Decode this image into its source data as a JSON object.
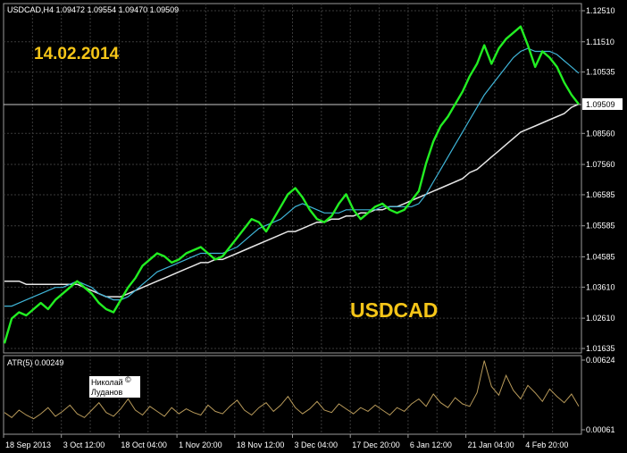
{
  "header": {
    "symbol_line": "USDCAD,H4  1.09472 1.09554 1.09470 1.09509"
  },
  "annotations": {
    "date": "14.02.2014",
    "symbol": "USDCAD",
    "author_line1": "Николай",
    "author_line2": "Луданов",
    "copyright_mark": "©"
  },
  "colors": {
    "background": "#000000",
    "grid": "#3a3a3a",
    "price": "#22ee22",
    "fast_ma": "#3fb5d8",
    "slow_ma": "#e6e6e6",
    "atr": "#b89a5a",
    "text": "#ffffff",
    "highlight_text": "#f5c518"
  },
  "chart_data": [
    {
      "type": "line",
      "panel": "price",
      "ylim": [
        1.01635,
        1.1251
      ],
      "y_ticks": [
        "1.12510",
        "1.11510",
        "1.10535",
        "1.09509",
        "1.08560",
        "1.07560",
        "1.06585",
        "1.05585",
        "1.04585",
        "1.03610",
        "1.02610",
        "1.01635"
      ],
      "current_price": "1.09509",
      "x_ticks": [
        "18 Sep 2013",
        "3 Oct 12:00",
        "18 Oct 04:00",
        "1 Nov 20:00",
        "18 Nov 12:00",
        "3 Dec 04:00",
        "17 Dec 20:00",
        "6 Jan 12:00",
        "21 Jan 04:00",
        "4 Feb 20:00"
      ],
      "series": [
        {
          "role": "price",
          "values": [
            1.018,
            1.026,
            1.028,
            1.027,
            1.029,
            1.031,
            1.029,
            1.032,
            1.034,
            1.036,
            1.038,
            1.036,
            1.034,
            1.031,
            1.029,
            1.028,
            1.032,
            1.036,
            1.039,
            1.043,
            1.045,
            1.047,
            1.046,
            1.044,
            1.045,
            1.047,
            1.048,
            1.049,
            1.047,
            1.045,
            1.046,
            1.049,
            1.052,
            1.055,
            1.058,
            1.057,
            1.054,
            1.058,
            1.062,
            1.066,
            1.068,
            1.065,
            1.061,
            1.058,
            1.057,
            1.059,
            1.063,
            1.066,
            1.061,
            1.058,
            1.06,
            1.062,
            1.063,
            1.061,
            1.06,
            1.061,
            1.064,
            1.067,
            1.076,
            1.083,
            1.088,
            1.091,
            1.095,
            1.099,
            1.104,
            1.108,
            1.114,
            1.108,
            1.113,
            1.116,
            1.118,
            1.12,
            1.114,
            1.107,
            1.112,
            1.11,
            1.107,
            1.102,
            1.098,
            1.095
          ]
        },
        {
          "role": "fast_ma",
          "values": [
            1.03,
            1.03,
            1.031,
            1.032,
            1.033,
            1.034,
            1.035,
            1.036,
            1.036,
            1.037,
            1.038,
            1.037,
            1.036,
            1.034,
            1.033,
            1.032,
            1.032,
            1.033,
            1.035,
            1.037,
            1.039,
            1.041,
            1.042,
            1.043,
            1.044,
            1.045,
            1.046,
            1.047,
            1.047,
            1.047,
            1.047,
            1.048,
            1.049,
            1.051,
            1.053,
            1.055,
            1.056,
            1.057,
            1.058,
            1.06,
            1.062,
            1.063,
            1.062,
            1.061,
            1.06,
            1.06,
            1.06,
            1.061,
            1.061,
            1.061,
            1.061,
            1.061,
            1.062,
            1.062,
            1.062,
            1.062,
            1.062,
            1.063,
            1.066,
            1.07,
            1.074,
            1.078,
            1.082,
            1.086,
            1.09,
            1.094,
            1.098,
            1.101,
            1.104,
            1.107,
            1.11,
            1.112,
            1.113,
            1.112,
            1.112,
            1.112,
            1.111,
            1.109,
            1.107,
            1.105
          ]
        },
        {
          "role": "slow_ma",
          "values": [
            1.038,
            1.038,
            1.038,
            1.037,
            1.037,
            1.037,
            1.037,
            1.037,
            1.037,
            1.037,
            1.037,
            1.036,
            1.035,
            1.034,
            1.033,
            1.033,
            1.033,
            1.034,
            1.035,
            1.036,
            1.037,
            1.038,
            1.039,
            1.04,
            1.041,
            1.042,
            1.043,
            1.044,
            1.044,
            1.045,
            1.045,
            1.046,
            1.047,
            1.048,
            1.049,
            1.05,
            1.051,
            1.052,
            1.053,
            1.054,
            1.054,
            1.055,
            1.056,
            1.057,
            1.057,
            1.058,
            1.058,
            1.059,
            1.059,
            1.06,
            1.06,
            1.061,
            1.061,
            1.062,
            1.062,
            1.063,
            1.064,
            1.065,
            1.066,
            1.067,
            1.068,
            1.069,
            1.07,
            1.071,
            1.073,
            1.074,
            1.076,
            1.078,
            1.08,
            1.082,
            1.084,
            1.086,
            1.087,
            1.088,
            1.089,
            1.09,
            1.091,
            1.092,
            1.094,
            1.095
          ]
        }
      ]
    },
    {
      "type": "line",
      "panel": "indicator",
      "title": "ATR(5) 0.00249",
      "ylim": [
        0.00061,
        0.00624
      ],
      "y_ticks": [
        "0.00624",
        "0.00061"
      ],
      "series": [
        {
          "role": "atr",
          "values": [
            0.002,
            0.0016,
            0.0022,
            0.0018,
            0.0015,
            0.0019,
            0.0024,
            0.0017,
            0.0021,
            0.0026,
            0.0019,
            0.0016,
            0.0022,
            0.0028,
            0.002,
            0.0017,
            0.0023,
            0.0031,
            0.0022,
            0.0018,
            0.0025,
            0.0021,
            0.0017,
            0.0024,
            0.0019,
            0.0023,
            0.002,
            0.0018,
            0.0026,
            0.0021,
            0.0019,
            0.0025,
            0.003,
            0.0022,
            0.0018,
            0.0024,
            0.0028,
            0.0021,
            0.0026,
            0.0033,
            0.0024,
            0.0019,
            0.0023,
            0.0029,
            0.0022,
            0.002,
            0.0027,
            0.0023,
            0.0019,
            0.0024,
            0.0021,
            0.0026,
            0.0022,
            0.0018,
            0.0024,
            0.0021,
            0.0027,
            0.0031,
            0.0025,
            0.0035,
            0.0028,
            0.0024,
            0.0032,
            0.0027,
            0.0025,
            0.0036,
            0.0062,
            0.0041,
            0.0034,
            0.005,
            0.0038,
            0.0031,
            0.0042,
            0.0036,
            0.0029,
            0.0039,
            0.0033,
            0.0028,
            0.0035,
            0.0025
          ]
        }
      ]
    }
  ]
}
